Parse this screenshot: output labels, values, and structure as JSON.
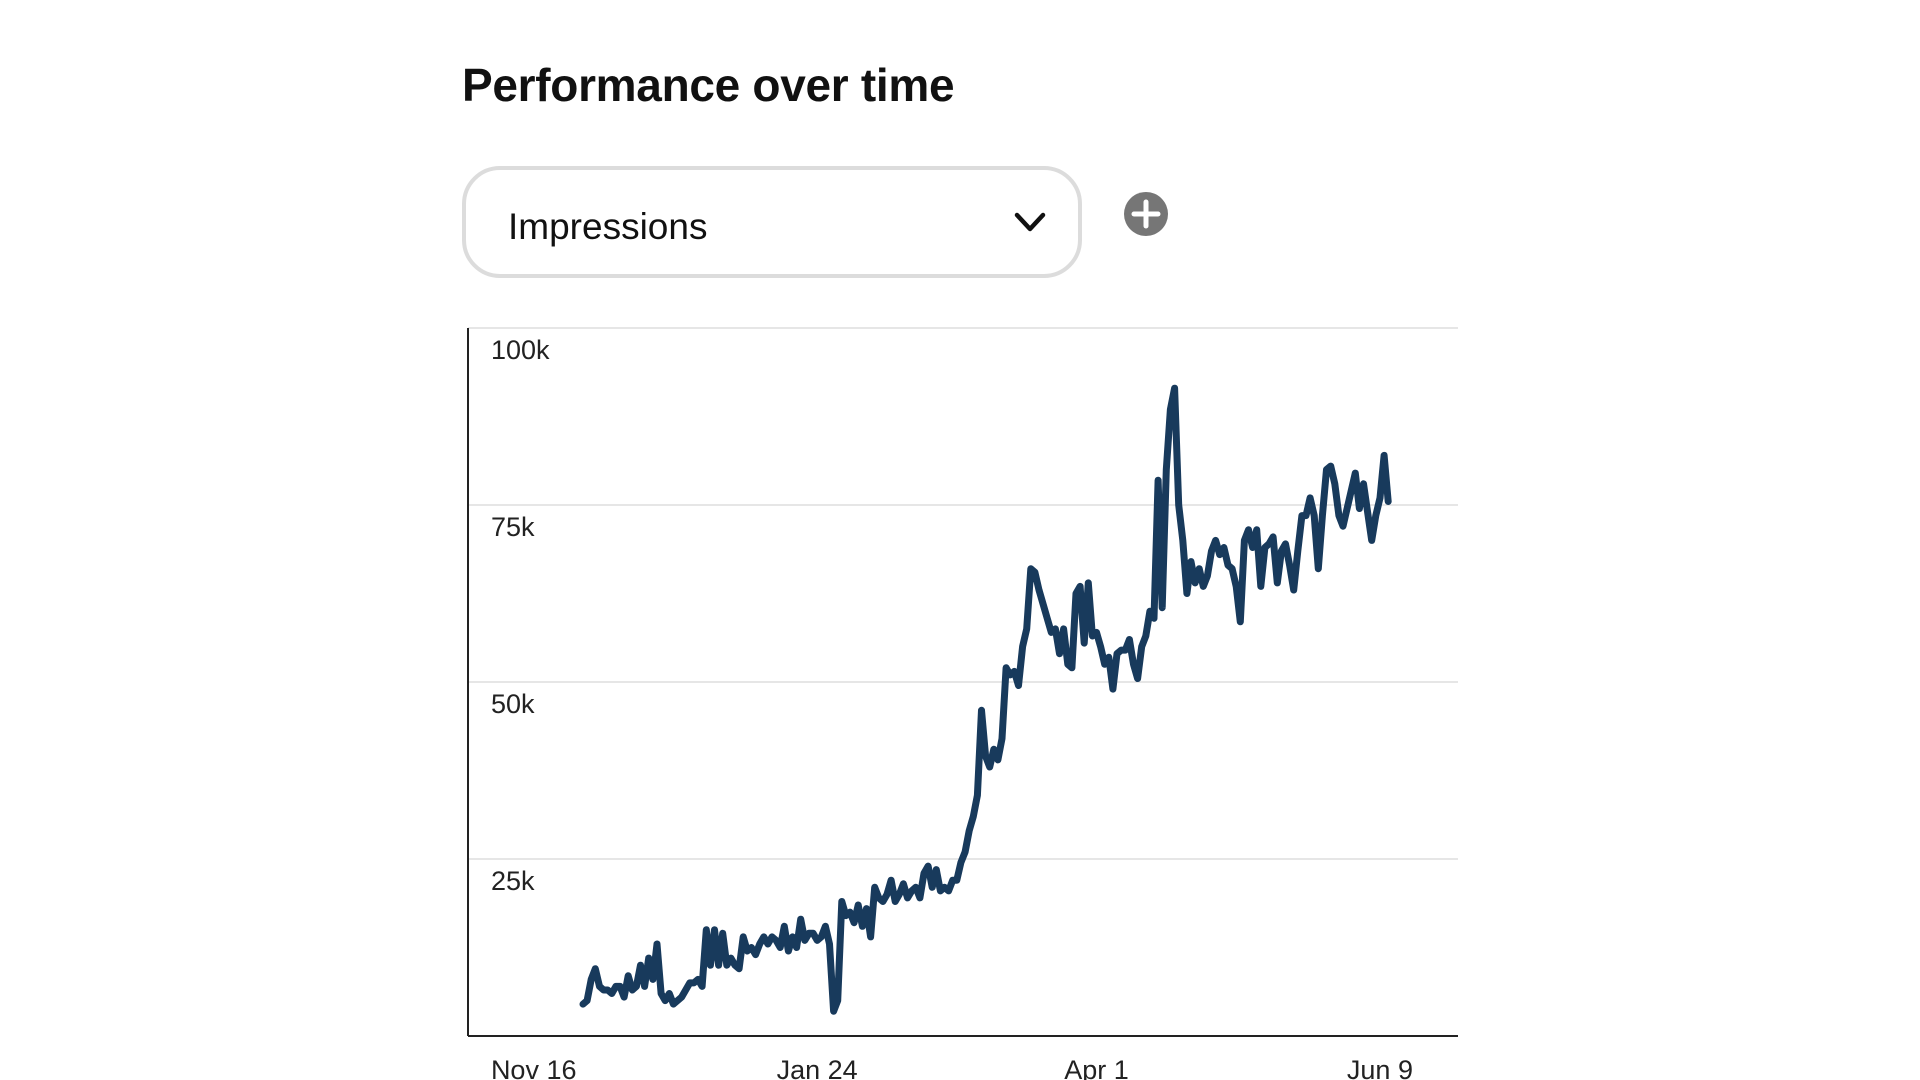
{
  "header": {
    "title": "Performance over time"
  },
  "metric_selector": {
    "selected": "Impressions",
    "chevron_icon": "chevron-down-icon"
  },
  "add_metric": {
    "icon": "plus-circle-icon"
  },
  "colors": {
    "line": "#183a5c",
    "highlight_band": "#e8efed",
    "gridline": "#e6e6e6",
    "axis": "#222222",
    "add_icon": "#767676"
  },
  "chart_data": {
    "type": "line",
    "title": "",
    "xlabel": "",
    "ylabel": "",
    "ylim": [
      0,
      100000
    ],
    "y_ticks": [
      {
        "value": 25000,
        "label": "25k"
      },
      {
        "value": 50000,
        "label": "50k"
      },
      {
        "value": 75000,
        "label": "75k"
      },
      {
        "value": 100000,
        "label": "100k"
      }
    ],
    "x_ticks": [
      {
        "day": 4,
        "label": "Nov 16"
      },
      {
        "day": 73,
        "label": "Jan 24"
      },
      {
        "day": 141,
        "label": "Apr 1"
      },
      {
        "day": 210,
        "label": "Jun 9"
      }
    ],
    "xlim": [
      -12,
      229
    ],
    "highlight_range": [
      -12,
      16
    ],
    "grid": true,
    "series": [
      {
        "values": [
          [
            16,
            4500
          ],
          [
            17,
            5000
          ],
          [
            18,
            8000
          ],
          [
            19,
            9500
          ],
          [
            20,
            7000
          ],
          [
            21,
            6500
          ],
          [
            22,
            6500
          ],
          [
            23,
            6000
          ],
          [
            24,
            7000
          ],
          [
            25,
            7000
          ],
          [
            26,
            5500
          ],
          [
            27,
            8500
          ],
          [
            28,
            6500
          ],
          [
            29,
            7000
          ],
          [
            30,
            10000
          ],
          [
            31,
            7000
          ],
          [
            32,
            11000
          ],
          [
            33,
            8000
          ],
          [
            34,
            13000
          ],
          [
            35,
            6000
          ],
          [
            36,
            5000
          ],
          [
            37,
            6000
          ],
          [
            38,
            4500
          ],
          [
            39,
            5000
          ],
          [
            40,
            5500
          ],
          [
            41,
            6500
          ],
          [
            42,
            7500
          ],
          [
            43,
            7500
          ],
          [
            44,
            8000
          ],
          [
            45,
            7000
          ],
          [
            46,
            15000
          ],
          [
            47,
            10000
          ],
          [
            48,
            15000
          ],
          [
            49,
            10000
          ],
          [
            50,
            14500
          ],
          [
            51,
            10000
          ],
          [
            52,
            11000
          ],
          [
            53,
            10000
          ],
          [
            54,
            9500
          ],
          [
            55,
            14000
          ],
          [
            56,
            12000
          ],
          [
            57,
            12500
          ],
          [
            58,
            11500
          ],
          [
            59,
            13000
          ],
          [
            60,
            14000
          ],
          [
            61,
            13000
          ],
          [
            62,
            14000
          ],
          [
            63,
            13500
          ],
          [
            64,
            12500
          ],
          [
            65,
            15500
          ],
          [
            66,
            12000
          ],
          [
            67,
            14000
          ],
          [
            68,
            12500
          ],
          [
            69,
            16500
          ],
          [
            70,
            13500
          ],
          [
            71,
            14500
          ],
          [
            72,
            14500
          ],
          [
            73,
            13500
          ],
          [
            74,
            14000
          ],
          [
            75,
            15500
          ],
          [
            76,
            13000
          ],
          [
            77,
            3500
          ],
          [
            78,
            5000
          ],
          [
            79,
            19000
          ],
          [
            80,
            17000
          ],
          [
            81,
            17500
          ],
          [
            82,
            16000
          ],
          [
            83,
            18500
          ],
          [
            84,
            15500
          ],
          [
            85,
            18000
          ],
          [
            86,
            14000
          ],
          [
            87,
            21000
          ],
          [
            88,
            19500
          ],
          [
            89,
            19000
          ],
          [
            90,
            20000
          ],
          [
            91,
            22000
          ],
          [
            92,
            19000
          ],
          [
            93,
            20000
          ],
          [
            94,
            21500
          ],
          [
            95,
            19500
          ],
          [
            96,
            20500
          ],
          [
            97,
            21000
          ],
          [
            98,
            19500
          ],
          [
            99,
            23000
          ],
          [
            100,
            24000
          ],
          [
            101,
            21000
          ],
          [
            102,
            23500
          ],
          [
            103,
            20500
          ],
          [
            104,
            21000
          ],
          [
            105,
            20500
          ],
          [
            106,
            22000
          ],
          [
            107,
            22000
          ],
          [
            108,
            24500
          ],
          [
            109,
            26000
          ],
          [
            110,
            29000
          ],
          [
            111,
            31000
          ],
          [
            112,
            34000
          ],
          [
            113,
            46000
          ],
          [
            114,
            39500
          ],
          [
            115,
            38000
          ],
          [
            116,
            40500
          ],
          [
            117,
            39000
          ],
          [
            118,
            42000
          ],
          [
            119,
            52000
          ],
          [
            120,
            51000
          ],
          [
            121,
            51500
          ],
          [
            122,
            49500
          ],
          [
            123,
            55000
          ],
          [
            124,
            57500
          ],
          [
            125,
            66000
          ],
          [
            126,
            65500
          ],
          [
            127,
            63000
          ],
          [
            128,
            61000
          ],
          [
            129,
            59000
          ],
          [
            130,
            57000
          ],
          [
            131,
            57500
          ],
          [
            132,
            54000
          ],
          [
            133,
            57500
          ],
          [
            134,
            52500
          ],
          [
            135,
            52000
          ],
          [
            136,
            62500
          ],
          [
            137,
            63500
          ],
          [
            138,
            55500
          ],
          [
            139,
            64000
          ],
          [
            140,
            56500
          ],
          [
            141,
            57000
          ],
          [
            142,
            55000
          ],
          [
            143,
            52500
          ],
          [
            144,
            53500
          ],
          [
            145,
            49000
          ],
          [
            146,
            54000
          ],
          [
            147,
            54500
          ],
          [
            148,
            54500
          ],
          [
            149,
            56000
          ],
          [
            150,
            52500
          ],
          [
            151,
            50500
          ],
          [
            152,
            55000
          ],
          [
            153,
            56500
          ],
          [
            154,
            60000
          ],
          [
            155,
            59000
          ],
          [
            156,
            78500
          ],
          [
            157,
            60500
          ],
          [
            158,
            80000
          ],
          [
            159,
            88500
          ],
          [
            160,
            91500
          ],
          [
            161,
            75000
          ],
          [
            162,
            70000
          ],
          [
            163,
            62500
          ],
          [
            164,
            67000
          ],
          [
            165,
            64000
          ],
          [
            166,
            66000
          ],
          [
            167,
            63500
          ],
          [
            168,
            65000
          ],
          [
            169,
            68500
          ],
          [
            170,
            70000
          ],
          [
            171,
            68000
          ],
          [
            172,
            69000
          ],
          [
            173,
            66500
          ],
          [
            174,
            66000
          ],
          [
            175,
            63500
          ],
          [
            176,
            58500
          ],
          [
            177,
            70000
          ],
          [
            178,
            71500
          ],
          [
            179,
            69000
          ],
          [
            180,
            71500
          ],
          [
            181,
            63500
          ],
          [
            182,
            69000
          ],
          [
            183,
            69500
          ],
          [
            184,
            70500
          ],
          [
            185,
            64000
          ],
          [
            186,
            68500
          ],
          [
            187,
            69500
          ],
          [
            188,
            66500
          ],
          [
            189,
            63000
          ],
          [
            190,
            68500
          ],
          [
            191,
            73500
          ],
          [
            192,
            73500
          ],
          [
            193,
            76000
          ],
          [
            194,
            73500
          ],
          [
            195,
            66000
          ],
          [
            196,
            73500
          ],
          [
            197,
            80000
          ],
          [
            198,
            80500
          ],
          [
            199,
            78000
          ],
          [
            200,
            73500
          ],
          [
            201,
            72000
          ],
          [
            202,
            74500
          ],
          [
            203,
            77000
          ],
          [
            204,
            79500
          ],
          [
            205,
            74500
          ],
          [
            206,
            78000
          ],
          [
            207,
            74000
          ],
          [
            208,
            70000
          ],
          [
            209,
            73500
          ],
          [
            210,
            76000
          ],
          [
            211,
            82000
          ],
          [
            212,
            75500
          ]
        ]
      }
    ]
  }
}
